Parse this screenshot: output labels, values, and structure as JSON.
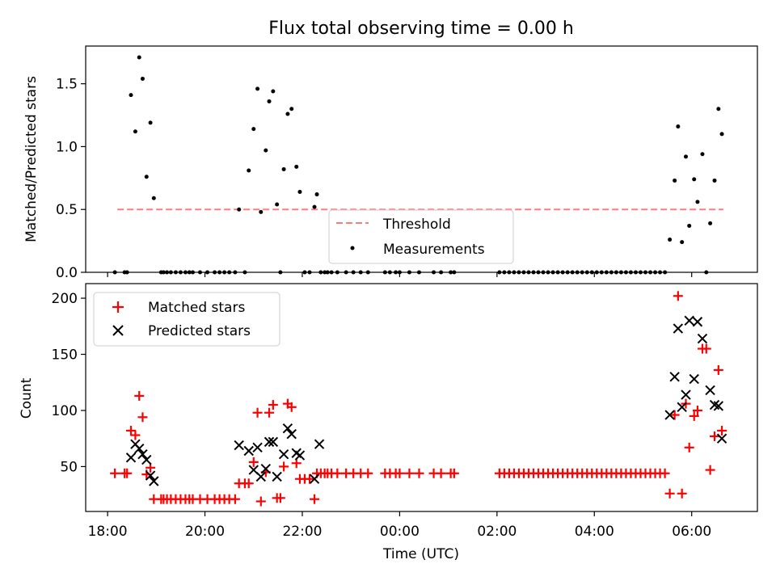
{
  "title": "Flux total observing time = 0.00 h",
  "x_axis": {
    "label": "Time (UTC)",
    "range_hours": [
      17.55,
      31.35
    ],
    "ticks": [
      {
        "h": 18,
        "label": "18:00"
      },
      {
        "h": 20,
        "label": "20:00"
      },
      {
        "h": 22,
        "label": "22:00"
      },
      {
        "h": 24,
        "label": "00:00"
      },
      {
        "h": 26,
        "label": "02:00"
      },
      {
        "h": 28,
        "label": "04:00"
      },
      {
        "h": 30,
        "label": "06:00"
      }
    ]
  },
  "chart_data": [
    {
      "type": "scatter",
      "ylabel": "Matched/Predicted stars",
      "ylim": [
        0,
        1.8
      ],
      "yticks": [
        0.0,
        0.5,
        1.0,
        1.5
      ],
      "ytick_labels": [
        "0.0",
        "0.5",
        "1.0",
        "1.5"
      ],
      "legend": {
        "placement": "lower-center",
        "entries": [
          "Threshold",
          "Measurements"
        ]
      },
      "threshold": {
        "name": "Threshold",
        "value": 0.5,
        "x_range": [
          18.2,
          30.65
        ],
        "color": "#ff7b7b"
      },
      "measurements": {
        "name": "Measurements",
        "color": "#000000",
        "points": [
          [
            18.15,
            0.0
          ],
          [
            18.35,
            0.0
          ],
          [
            18.4,
            0.0
          ],
          [
            18.48,
            1.41
          ],
          [
            18.57,
            1.12
          ],
          [
            18.65,
            1.71
          ],
          [
            18.72,
            1.54
          ],
          [
            18.8,
            0.76
          ],
          [
            18.88,
            1.19
          ],
          [
            18.95,
            0.59
          ],
          [
            19.1,
            0.0
          ],
          [
            19.15,
            0.0
          ],
          [
            19.22,
            0.0
          ],
          [
            19.3,
            0.0
          ],
          [
            19.4,
            0.0
          ],
          [
            19.5,
            0.0
          ],
          [
            19.6,
            0.0
          ],
          [
            19.68,
            0.0
          ],
          [
            19.75,
            0.0
          ],
          [
            19.9,
            0.0
          ],
          [
            20.05,
            0.0
          ],
          [
            20.2,
            0.0
          ],
          [
            20.3,
            0.0
          ],
          [
            20.4,
            0.0
          ],
          [
            20.5,
            0.0
          ],
          [
            20.62,
            0.0
          ],
          [
            20.7,
            0.5
          ],
          [
            20.82,
            0.0
          ],
          [
            20.9,
            0.81
          ],
          [
            21.0,
            1.14
          ],
          [
            21.08,
            1.46
          ],
          [
            21.15,
            0.48
          ],
          [
            21.25,
            0.97
          ],
          [
            21.32,
            1.36
          ],
          [
            21.4,
            1.44
          ],
          [
            21.48,
            0.54
          ],
          [
            21.55,
            0.0
          ],
          [
            21.62,
            0.82
          ],
          [
            21.7,
            1.26
          ],
          [
            21.78,
            1.3
          ],
          [
            21.88,
            0.84
          ],
          [
            21.95,
            0.64
          ],
          [
            22.05,
            0.0
          ],
          [
            22.15,
            0.0
          ],
          [
            22.25,
            0.52
          ],
          [
            22.3,
            0.62
          ],
          [
            22.38,
            0.0
          ],
          [
            22.46,
            0.0
          ],
          [
            22.52,
            0.0
          ],
          [
            22.6,
            0.0
          ],
          [
            22.72,
            0.0
          ],
          [
            22.9,
            0.0
          ],
          [
            23.05,
            0.0
          ],
          [
            23.2,
            0.0
          ],
          [
            23.35,
            0.0
          ],
          [
            23.7,
            0.0
          ],
          [
            23.8,
            0.0
          ],
          [
            23.92,
            0.0
          ],
          [
            24.0,
            0.0
          ],
          [
            24.2,
            0.0
          ],
          [
            24.4,
            0.0
          ],
          [
            24.7,
            0.0
          ],
          [
            24.85,
            0.0
          ],
          [
            25.05,
            0.0
          ],
          [
            25.12,
            0.0
          ],
          [
            26.05,
            0.0
          ],
          [
            26.15,
            0.0
          ],
          [
            26.25,
            0.0
          ],
          [
            26.35,
            0.0
          ],
          [
            26.45,
            0.0
          ],
          [
            26.55,
            0.0
          ],
          [
            26.65,
            0.0
          ],
          [
            26.75,
            0.0
          ],
          [
            26.85,
            0.0
          ],
          [
            26.95,
            0.0
          ],
          [
            27.05,
            0.0
          ],
          [
            27.15,
            0.0
          ],
          [
            27.25,
            0.0
          ],
          [
            27.35,
            0.0
          ],
          [
            27.45,
            0.0
          ],
          [
            27.55,
            0.0
          ],
          [
            27.65,
            0.0
          ],
          [
            27.75,
            0.0
          ],
          [
            27.85,
            0.0
          ],
          [
            27.95,
            0.0
          ],
          [
            28.05,
            0.0
          ],
          [
            28.15,
            0.0
          ],
          [
            28.25,
            0.0
          ],
          [
            28.35,
            0.0
          ],
          [
            28.45,
            0.0
          ],
          [
            28.55,
            0.0
          ],
          [
            28.65,
            0.0
          ],
          [
            28.75,
            0.0
          ],
          [
            28.85,
            0.0
          ],
          [
            28.95,
            0.0
          ],
          [
            29.05,
            0.0
          ],
          [
            29.15,
            0.0
          ],
          [
            29.25,
            0.0
          ],
          [
            29.35,
            0.0
          ],
          [
            29.45,
            0.0
          ],
          [
            29.55,
            0.26
          ],
          [
            29.65,
            0.73
          ],
          [
            29.72,
            1.16
          ],
          [
            29.8,
            0.24
          ],
          [
            29.88,
            0.92
          ],
          [
            29.95,
            0.37
          ],
          [
            30.05,
            0.74
          ],
          [
            30.12,
            0.56
          ],
          [
            30.22,
            0.94
          ],
          [
            30.3,
            0.0
          ],
          [
            30.38,
            0.39
          ],
          [
            30.47,
            0.73
          ],
          [
            30.55,
            1.3
          ],
          [
            30.62,
            1.1
          ]
        ]
      }
    },
    {
      "type": "scatter",
      "ylabel": "Count",
      "ylim": [
        10,
        213
      ],
      "yticks": [
        50,
        100,
        150,
        200
      ],
      "ytick_labels": [
        "50",
        "100",
        "150",
        "200"
      ],
      "legend": {
        "placement": "upper-left",
        "entries": [
          "Matched stars",
          "Predicted stars"
        ]
      },
      "series": [
        {
          "name": "Matched stars",
          "marker": "plus",
          "color": "#ff0000",
          "points": [
            [
              18.15,
              44
            ],
            [
              18.35,
              44
            ],
            [
              18.4,
              44
            ],
            [
              18.48,
              82
            ],
            [
              18.57,
              78
            ],
            [
              18.65,
              113
            ],
            [
              18.72,
              94
            ],
            [
              18.8,
              43
            ],
            [
              18.88,
              49
            ],
            [
              18.95,
              21
            ],
            [
              19.1,
              21
            ],
            [
              19.15,
              21
            ],
            [
              19.22,
              21
            ],
            [
              19.3,
              21
            ],
            [
              19.4,
              21
            ],
            [
              19.5,
              21
            ],
            [
              19.6,
              21
            ],
            [
              19.68,
              21
            ],
            [
              19.75,
              21
            ],
            [
              19.9,
              21
            ],
            [
              20.05,
              21
            ],
            [
              20.2,
              21
            ],
            [
              20.3,
              21
            ],
            [
              20.4,
              21
            ],
            [
              20.5,
              21
            ],
            [
              20.62,
              21
            ],
            [
              20.7,
              35
            ],
            [
              20.82,
              35
            ],
            [
              20.9,
              35
            ],
            [
              21.0,
              54
            ],
            [
              21.08,
              98
            ],
            [
              21.15,
              19
            ],
            [
              21.25,
              45
            ],
            [
              21.32,
              98
            ],
            [
              21.4,
              105
            ],
            [
              21.48,
              22
            ],
            [
              21.55,
              22
            ],
            [
              21.62,
              50
            ],
            [
              21.7,
              106
            ],
            [
              21.78,
              103
            ],
            [
              21.88,
              53
            ],
            [
              21.95,
              39
            ],
            [
              22.05,
              39
            ],
            [
              22.15,
              39
            ],
            [
              22.25,
              21
            ],
            [
              22.3,
              44
            ],
            [
              22.38,
              44
            ],
            [
              22.46,
              44
            ],
            [
              22.52,
              44
            ],
            [
              22.6,
              44
            ],
            [
              22.72,
              44
            ],
            [
              22.9,
              44
            ],
            [
              23.05,
              44
            ],
            [
              23.2,
              44
            ],
            [
              23.35,
              44
            ],
            [
              23.7,
              44
            ],
            [
              23.8,
              44
            ],
            [
              23.92,
              44
            ],
            [
              24.0,
              44
            ],
            [
              24.2,
              44
            ],
            [
              24.4,
              44
            ],
            [
              24.7,
              44
            ],
            [
              24.85,
              44
            ],
            [
              25.05,
              44
            ],
            [
              25.12,
              44
            ],
            [
              26.05,
              44
            ],
            [
              26.15,
              44
            ],
            [
              26.25,
              44
            ],
            [
              26.35,
              44
            ],
            [
              26.45,
              44
            ],
            [
              26.55,
              44
            ],
            [
              26.65,
              44
            ],
            [
              26.75,
              44
            ],
            [
              26.85,
              44
            ],
            [
              26.95,
              44
            ],
            [
              27.05,
              44
            ],
            [
              27.15,
              44
            ],
            [
              27.25,
              44
            ],
            [
              27.35,
              44
            ],
            [
              27.45,
              44
            ],
            [
              27.55,
              44
            ],
            [
              27.65,
              44
            ],
            [
              27.75,
              44
            ],
            [
              27.85,
              44
            ],
            [
              27.95,
              44
            ],
            [
              28.05,
              44
            ],
            [
              28.15,
              44
            ],
            [
              28.25,
              44
            ],
            [
              28.35,
              44
            ],
            [
              28.45,
              44
            ],
            [
              28.55,
              44
            ],
            [
              28.65,
              44
            ],
            [
              28.75,
              44
            ],
            [
              28.85,
              44
            ],
            [
              28.95,
              44
            ],
            [
              29.05,
              44
            ],
            [
              29.15,
              44
            ],
            [
              29.25,
              44
            ],
            [
              29.35,
              44
            ],
            [
              29.45,
              44
            ],
            [
              29.55,
              26
            ],
            [
              29.65,
              96
            ],
            [
              29.72,
              202
            ],
            [
              29.8,
              26
            ],
            [
              29.88,
              106
            ],
            [
              29.95,
              67
            ],
            [
              30.05,
              95
            ],
            [
              30.12,
              100
            ],
            [
              30.22,
              155
            ],
            [
              30.3,
              155
            ],
            [
              30.38,
              47
            ],
            [
              30.47,
              77
            ],
            [
              30.55,
              136
            ],
            [
              30.62,
              82
            ]
          ]
        },
        {
          "name": "Predicted stars",
          "marker": "x",
          "color": "#000000",
          "points": [
            [
              18.48,
              58
            ],
            [
              18.57,
              70
            ],
            [
              18.65,
              66
            ],
            [
              18.72,
              61
            ],
            [
              18.8,
              56
            ],
            [
              18.88,
              42
            ],
            [
              18.95,
              37
            ],
            [
              20.7,
              69
            ],
            [
              20.9,
              64
            ],
            [
              21.0,
              47
            ],
            [
              21.08,
              67
            ],
            [
              21.15,
              41
            ],
            [
              21.25,
              48
            ],
            [
              21.32,
              72
            ],
            [
              21.4,
              72
            ],
            [
              21.48,
              41
            ],
            [
              21.62,
              61
            ],
            [
              21.7,
              84
            ],
            [
              21.78,
              79
            ],
            [
              21.88,
              62
            ],
            [
              21.95,
              60
            ],
            [
              22.25,
              39
            ],
            [
              22.35,
              70
            ],
            [
              29.55,
              96
            ],
            [
              29.65,
              130
            ],
            [
              29.72,
              173
            ],
            [
              29.8,
              103
            ],
            [
              29.88,
              114
            ],
            [
              29.95,
              180
            ],
            [
              30.05,
              128
            ],
            [
              30.12,
              179
            ],
            [
              30.22,
              164
            ],
            [
              30.38,
              118
            ],
            [
              30.47,
              105
            ],
            [
              30.55,
              104
            ],
            [
              30.62,
              75
            ]
          ]
        }
      ]
    }
  ]
}
